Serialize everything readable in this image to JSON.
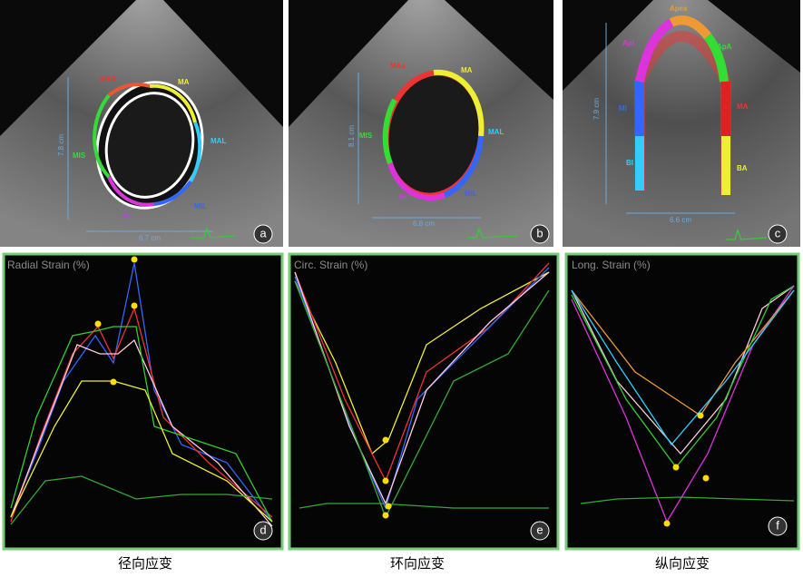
{
  "panels": [
    {
      "letter": "a",
      "labels": [
        "MAS",
        "MA",
        "MAL",
        "MIL",
        "MI",
        "MIS"
      ],
      "measurements": [
        "7.8 cm",
        "6.7 cm"
      ]
    },
    {
      "letter": "b",
      "labels": [
        "MAs",
        "MA",
        "MAL",
        "MIL",
        "MI",
        "MIS"
      ],
      "measurements": [
        "8.1 cm",
        "6.8 cm"
      ]
    },
    {
      "letter": "c",
      "labels": [
        "Apex",
        "ApA",
        "ApI",
        "MA",
        "MI",
        "BA",
        "BI"
      ],
      "measurements": [
        "7.9 cm",
        "6.6 cm"
      ]
    }
  ],
  "graphs": [
    {
      "letter": "d",
      "title": "Radial Strain (%)",
      "caption": "径向应变"
    },
    {
      "letter": "e",
      "title": "Circ. Strain (%)",
      "caption": "环向应变"
    },
    {
      "letter": "f",
      "title": "Long. Strain (%)",
      "caption": "纵向应变"
    }
  ]
}
